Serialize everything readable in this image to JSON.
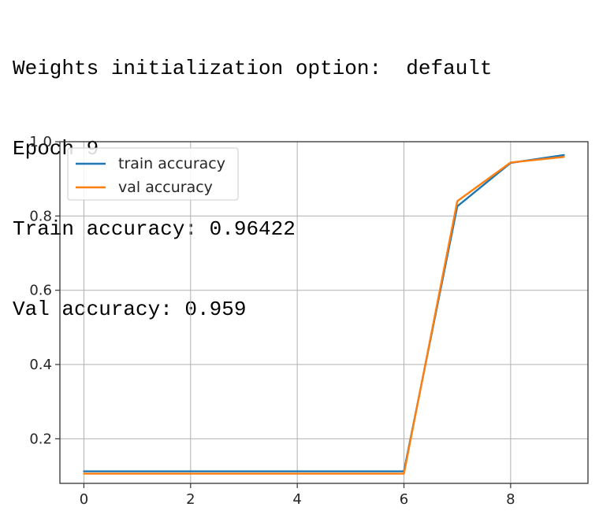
{
  "log": {
    "lines": [
      "Weights initialization option:  default",
      "Epoch 9",
      "Train accuracy: 0.96422",
      "Val accuracy: 0.959"
    ]
  },
  "chart_data": {
    "type": "line",
    "title": "",
    "xlabel": "",
    "ylabel": "",
    "xlim": [
      -0.45,
      9.45
    ],
    "ylim": [
      0.08,
      1.0
    ],
    "x_ticks": [
      0,
      2,
      4,
      6,
      8
    ],
    "y_ticks": [
      0.2,
      0.4,
      0.6,
      0.8,
      1.0
    ],
    "x_tick_labels": [
      "0",
      "2",
      "4",
      "6",
      "8"
    ],
    "y_tick_labels": [
      "0.2",
      "0.4",
      "0.6",
      "0.8",
      "1.0"
    ],
    "grid": true,
    "legend_position": "upper-left",
    "x": [
      0,
      1,
      2,
      3,
      4,
      5,
      6,
      7,
      8,
      9
    ],
    "series": [
      {
        "name": "train accuracy",
        "color": "#1f77b4",
        "values": [
          0.1124,
          0.1124,
          0.1124,
          0.1124,
          0.1124,
          0.1124,
          0.1124,
          0.826,
          0.943,
          0.96422
        ]
      },
      {
        "name": "val accuracy",
        "color": "#ff7f0e",
        "values": [
          0.106,
          0.106,
          0.106,
          0.106,
          0.106,
          0.106,
          0.106,
          0.84,
          0.944,
          0.959
        ]
      }
    ]
  }
}
